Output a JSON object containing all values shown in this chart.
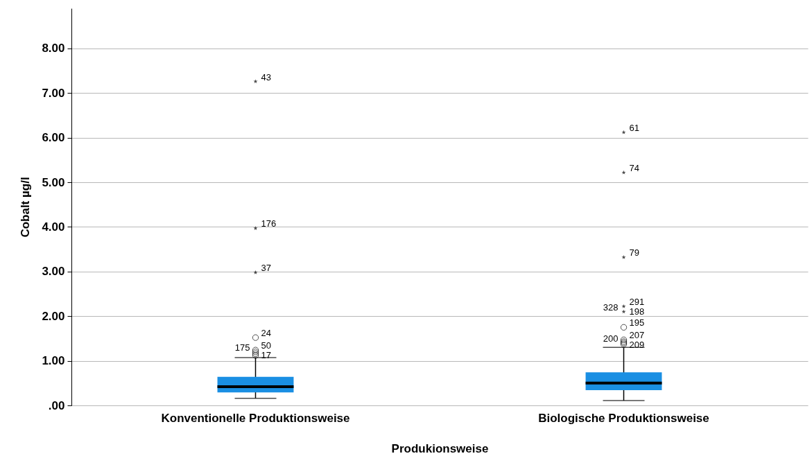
{
  "chart_data": {
    "type": "box",
    "categories": [
      "Konventionelle Produktionsweise",
      "Biologische Produktionsweise"
    ],
    "series": [
      {
        "type": "box",
        "color": "#1a8fe3",
        "boxes": [
          {
            "low": 0.16,
            "q1": 0.29,
            "median": 0.42,
            "q3": 0.64,
            "high": 1.07
          },
          {
            "low": 0.11,
            "q1": 0.34,
            "median": 0.5,
            "q3": 0.74,
            "high": 1.3
          }
        ]
      },
      {
        "type": "scatter",
        "marker": "circle",
        "color": "#000000",
        "x": [
          "Konventionelle Produktionsweise",
          "Konventionelle Produktionsweise",
          "Konventionelle Produktionsweise",
          "Konventionelle Produktionsweise",
          "Konventionelle Produktionsweise",
          "Biologische Produktionsweise",
          "Biologische Produktionsweise",
          "Biologische Produktionsweise",
          "Biologische Produktionsweise",
          "Biologische Produktionsweise"
        ],
        "values": [
          1.12,
          1.16,
          1.2,
          1.24,
          1.52,
          1.37,
          1.4,
          1.43,
          1.47,
          1.75
        ]
      },
      {
        "type": "scatter",
        "marker": "star",
        "color": "#000000",
        "x": [
          "Konventionelle Produktionsweise",
          "Konventionelle Produktionsweise",
          "Konventionelle Produktionsweise",
          "Biologische Produktionsweise",
          "Biologische Produktionsweise",
          "Biologische Produktionsweise",
          "Biologische Produktionsweise",
          "Biologische Produktionsweise"
        ],
        "values": [
          2.98,
          3.97,
          7.26,
          2.1,
          2.22,
          3.32,
          5.22,
          6.12
        ]
      }
    ],
    "xlabel": "Produkionsweise",
    "ylabel": "Cobalt µg/l",
    "ylim": [
      0,
      8.9
    ],
    "yticks": [
      {
        "value": 0,
        "label": ".00"
      },
      {
        "value": 1,
        "label": "1.00"
      },
      {
        "value": 2,
        "label": "2.00"
      },
      {
        "value": 3,
        "label": "3.00"
      },
      {
        "value": 4,
        "label": "4.00"
      },
      {
        "value": 5,
        "label": "5.00"
      },
      {
        "value": 6,
        "label": "6.00"
      },
      {
        "value": 7,
        "label": "7.00"
      },
      {
        "value": 8,
        "label": "8.00"
      }
    ],
    "grid": "y",
    "annotations": [
      {
        "text": "43",
        "x": "Konventionelle Produktionsweise",
        "y": 7.26
      },
      {
        "text": "176",
        "x": "Konventionelle Produktionsweise",
        "y": 3.97
      },
      {
        "text": "37",
        "x": "Konventionelle Produktionsweise",
        "y": 2.98
      },
      {
        "text": "24",
        "x": "Konventionelle Produktionsweise",
        "y": 1.52
      },
      {
        "text": "50",
        "x": "Konventionelle Produktionsweise",
        "y": 1.24
      },
      {
        "text": "175",
        "x": "Konventionelle Produktionsweise",
        "y": 1.2
      },
      {
        "text": "17",
        "x": "Konventionelle Produktionsweise",
        "y": 1.12
      },
      {
        "text": "61",
        "x": "Biologische Produktionsweise",
        "y": 6.12
      },
      {
        "text": "74",
        "x": "Biologische Produktionsweise",
        "y": 5.22
      },
      {
        "text": "79",
        "x": "Biologische Produktionsweise",
        "y": 3.32
      },
      {
        "text": "291",
        "x": "Biologische Produktionsweise",
        "y": 2.22
      },
      {
        "text": "328",
        "x": "Biologische Produktionsweise",
        "y": 2.1
      },
      {
        "text": "198",
        "x": "Biologische Produktionsweise",
        "y": 2.1
      },
      {
        "text": "195",
        "x": "Biologische Produktionsweise",
        "y": 1.75
      },
      {
        "text": "207",
        "x": "Biologische Produktionsweise",
        "y": 1.47
      },
      {
        "text": "200",
        "x": "Biologische Produktionsweise",
        "y": 1.4
      },
      {
        "text": "209",
        "x": "Biologische Produktionsweise",
        "y": 1.37
      }
    ]
  }
}
